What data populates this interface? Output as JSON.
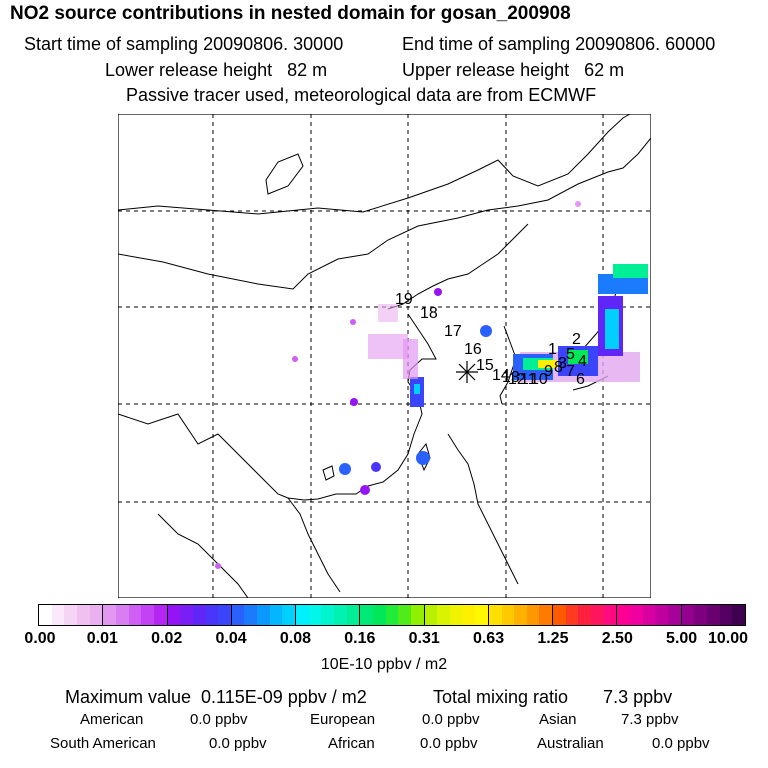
{
  "header": {
    "title": "NO2 source contributions in nested domain for gosan_200908",
    "start_time": "Start time of sampling 20090806. 30000",
    "end_time": "End time of sampling 20090806. 60000",
    "lower_release": "Lower release height   82 m",
    "upper_release": "Upper release height   62 m",
    "note": "Passive tracer used, meteorological data are from ECMWF"
  },
  "map": {
    "receptor_marker": "receptor-star",
    "region_labels": [
      "1",
      "2",
      "3",
      "4",
      "5",
      "6",
      "7",
      "8",
      "9",
      "10",
      "11",
      "12",
      "13",
      "14",
      "15",
      "16",
      "17",
      "18",
      "19"
    ]
  },
  "colorbar": {
    "ticks": [
      "0.00",
      "0.01",
      "0.02",
      "0.04",
      "0.08",
      "0.16",
      "0.31",
      "0.63",
      "1.25",
      "2.50",
      "5.00",
      "10.00"
    ],
    "unit": "10E-10 ppbv / m2",
    "colors": [
      [
        "#ffffff",
        "#fbe8fb",
        "#f5d4f5",
        "#f0c0f0",
        "#ebb0ef"
      ],
      [
        "#e297f1",
        "#d97df2",
        "#cf5ff4",
        "#c442f5",
        "#b526f5"
      ],
      [
        "#9414f6",
        "#7a1df7",
        "#6026f8",
        "#4a35fa",
        "#3a45fb"
      ],
      [
        "#2a60fc",
        "#1a7cfd",
        "#0a98fe",
        "#04b6ff",
        "#00d0ff"
      ],
      [
        "#00f0ff",
        "#00f7ea",
        "#00f5cf",
        "#00f2b3",
        "#00ee96"
      ],
      [
        "#00e878",
        "#00e85a",
        "#20ea3a",
        "#50ec1a",
        "#90f000"
      ],
      [
        "#b8f000",
        "#d8f400",
        "#f0f400",
        "#fff000",
        "#fff800"
      ],
      [
        "#ffe000",
        "#ffca00",
        "#ffb000",
        "#ff9800",
        "#ff7a00"
      ],
      [
        "#ff5a00",
        "#ff3a20",
        "#ff2040",
        "#ff1460",
        "#ff0a80"
      ],
      [
        "#ff0095",
        "#f000a0",
        "#d800a0",
        "#c0009e",
        "#a8009a"
      ],
      [
        "#92008e",
        "#7c0080",
        "#680070",
        "#540060",
        "#400050"
      ]
    ]
  },
  "summary": {
    "max_value": "Maximum value  0.115E-09 ppbv / m2",
    "total_mixing": "Total mixing ratio       7.3 ppbv"
  },
  "regions": {
    "american_label": "American",
    "american_value": "0.0 ppbv",
    "european_label": "European",
    "european_value": "0.0 ppbv",
    "asian_label": "Asian",
    "asian_value": "7.3 ppbv",
    "south_american_label": "South American",
    "south_american_value": "0.0 ppbv",
    "african_label": "African",
    "african_value": "0.0 ppbv",
    "australian_label": "Australian",
    "australian_value": "0.0 ppbv"
  }
}
